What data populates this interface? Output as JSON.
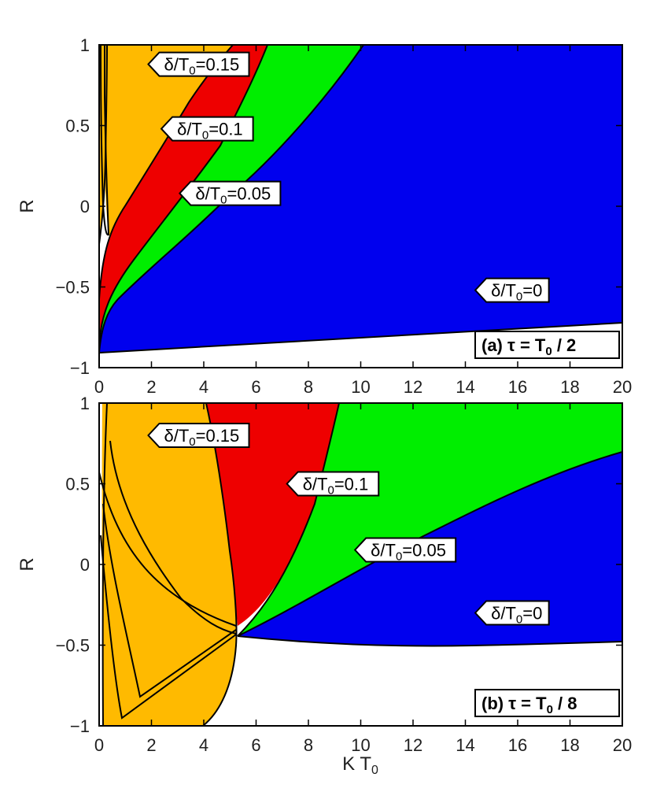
{
  "colors": {
    "delta_0": "#0000ee",
    "delta_005": "#00ee00",
    "delta_01": "#ee0000",
    "delta_015": "#ffba00",
    "boundary": "#000000",
    "frame": "#000000"
  },
  "chart_data": [
    {
      "type": "area",
      "title": "(a) τ = T₀ / 2",
      "title_parts": {
        "letter": "(a)",
        "eq": "τ = T",
        "sub": "0",
        "tail": " / 2"
      },
      "xlabel": "",
      "ylabel": "R",
      "xlim": [
        0,
        20
      ],
      "ylim": [
        -1,
        1
      ],
      "xticks": [
        0,
        2,
        4,
        6,
        8,
        10,
        12,
        14,
        16,
        18,
        20
      ],
      "yticks": [
        -1,
        -0.5,
        0,
        0.5,
        1
      ],
      "ytick_labels": [
        "−1",
        "−0.5",
        "0",
        "0.5",
        "1"
      ],
      "regions": [
        {
          "name": "δ/T0=0",
          "color": "delta_0",
          "bottom_boundary": {
            "x": [
              0,
              5,
              10,
              15,
              20
            ],
            "y": [
              -0.93,
              -0.89,
              -0.84,
              -0.8,
              -0.75
            ]
          },
          "top_boundary": {
            "x": [
              0,
              0.5,
              1,
              2,
              4,
              6,
              8,
              10,
              10.1,
              20
            ],
            "y": [
              -0.93,
              -0.8,
              -0.72,
              -0.55,
              -0.3,
              0.05,
              0.45,
              0.96,
              1.0,
              1.0
            ]
          }
        },
        {
          "name": "δ/T0=0.05",
          "color": "delta_005",
          "top_boundary": {
            "x": [
              0,
              0.5,
              1,
              2,
              3,
              4,
              5,
              6.1
            ],
            "y": [
              -0.82,
              -0.5,
              -0.3,
              0.0,
              0.3,
              0.58,
              0.85,
              1.0
            ]
          }
        },
        {
          "name": "δ/T0=0.1",
          "color": "delta_01",
          "top_boundary": {
            "x": [
              0.05,
              0.2,
              0.4,
              1,
              2,
              3,
              4.5
            ],
            "y": [
              -0.6,
              -0.2,
              0.0,
              0.4,
              0.65,
              0.88,
              1.0
            ]
          }
        },
        {
          "name": "δ/T0=0.15",
          "color": "delta_015",
          "top_boundary": {
            "x": [
              0.1,
              0.2,
              0.4,
              0.5
            ],
            "y": [
              0.6,
              -0.2,
              0.3,
              1.0
            ]
          }
        }
      ],
      "annotations": [
        {
          "text_pre": "δ/T",
          "sub": "0",
          "text_post": "=0.15",
          "x": 2.3,
          "y": 0.88
        },
        {
          "text_pre": "δ/T",
          "sub": "0",
          "text_post": "=0.1",
          "x": 2.8,
          "y": 0.48
        },
        {
          "text_pre": "δ/T",
          "sub": "0",
          "text_post": "=0.05",
          "x": 3.5,
          "y": 0.08
        },
        {
          "text_pre": "δ/T",
          "sub": "0",
          "text_post": "=0",
          "x": 14.8,
          "y": -0.52
        }
      ]
    },
    {
      "type": "area",
      "title": "(b) τ = T₀ / 8",
      "title_parts": {
        "letter": "(b)",
        "eq": "τ = T",
        "sub": "0",
        "tail": " / 8"
      },
      "xlabel": "K T₀",
      "xlabel_parts": {
        "main": "K T",
        "sub": "0"
      },
      "ylabel": "R",
      "xlim": [
        0,
        20
      ],
      "ylim": [
        -1,
        1
      ],
      "xticks": [
        0,
        2,
        4,
        6,
        8,
        10,
        12,
        14,
        16,
        18,
        20
      ],
      "yticks": [
        -1,
        -0.5,
        0,
        0.5,
        1
      ],
      "ytick_labels": [
        "−1",
        "−0.5",
        "0",
        "0.5",
        "1"
      ],
      "regions": [
        {
          "name": "δ/T0=0",
          "color": "delta_0",
          "bottom_boundary": {
            "x": [
              5.3,
              8,
              10,
              12,
              14,
              16,
              18,
              20
            ],
            "y": [
              -0.46,
              -0.49,
              -0.5,
              -0.5,
              -0.5,
              -0.5,
              -0.49,
              -0.48
            ]
          },
          "top_boundary": {
            "x": [
              5.3,
              8,
              11,
              14,
              17,
              20
            ],
            "y": [
              -0.46,
              -0.26,
              -0.05,
              0.15,
              0.38,
              0.62
            ]
          }
        },
        {
          "name": "δ/T0=0.05",
          "color": "delta_005",
          "top_boundary": {
            "x": [
              5.3,
              6.5,
              8,
              11,
              14,
              17,
              20
            ],
            "y": [
              -0.46,
              -0.2,
              0.3,
              0.55,
              0.7,
              0.82,
              0.92
            ]
          }
        },
        {
          "name": "δ/T0=0.1",
          "color": "delta_01",
          "top_boundary": {
            "x": [
              5.3,
              6,
              7,
              8,
              9.1
            ],
            "y": [
              -0.4,
              -0.2,
              0.15,
              0.55,
              1.0
            ]
          }
        },
        {
          "name": "δ/T0=0.15",
          "color": "delta_015",
          "top_boundary": {
            "x": [
              0.3,
              2,
              3.5,
              4.5,
              5.2,
              5.1,
              4.7,
              4
            ],
            "y": [
              1.0,
              0.95,
              0.75,
              0.4,
              -0.3,
              -0.6,
              -0.85,
              -1.0
            ]
          }
        }
      ],
      "annotations": [
        {
          "text_pre": "δ/T",
          "sub": "0",
          "text_post": "=0.15",
          "x": 2.3,
          "y": 0.8
        },
        {
          "text_pre": "δ/T",
          "sub": "0",
          "text_post": "=0.1",
          "x": 7.6,
          "y": 0.5
        },
        {
          "text_pre": "δ/T",
          "sub": "0",
          "text_post": "=0.05",
          "x": 10.2,
          "y": 0.09
        },
        {
          "text_pre": "δ/T",
          "sub": "0",
          "text_post": "=0",
          "x": 14.8,
          "y": -0.3
        }
      ]
    }
  ]
}
